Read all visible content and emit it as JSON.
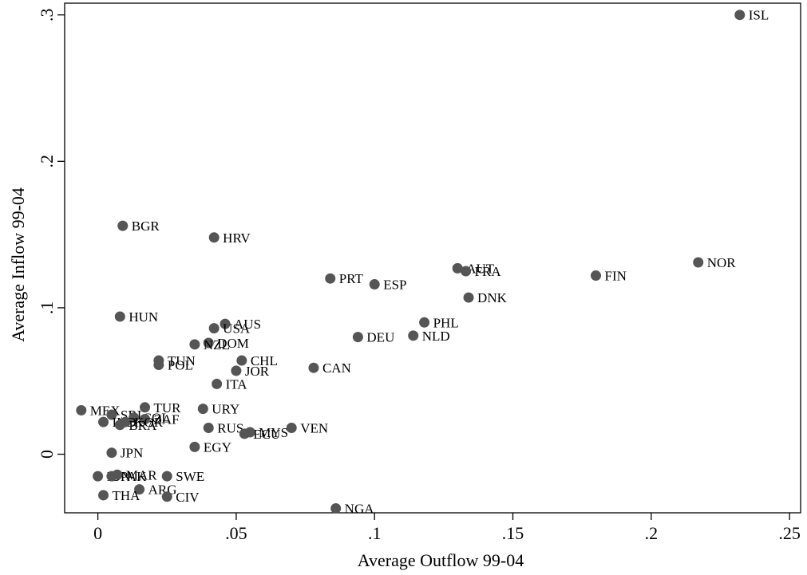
{
  "chart_data": {
    "type": "scatter",
    "xlabel": "Average Outflow 99-04",
    "ylabel": "Average Inflow 99-04",
    "xlim": [
      -0.012,
      0.254
    ],
    "ylim": [
      -0.04,
      0.308
    ],
    "xticks": [
      {
        "value": 0,
        "label": "0"
      },
      {
        "value": 0.05,
        "label": ".05"
      },
      {
        "value": 0.1,
        "label": ".1"
      },
      {
        "value": 0.15,
        "label": ".15"
      },
      {
        "value": 0.2,
        "label": ".2"
      },
      {
        "value": 0.25,
        "label": ".25"
      }
    ],
    "yticks": [
      {
        "value": 0,
        "label": "0"
      },
      {
        "value": 0.1,
        "label": ".1"
      },
      {
        "value": 0.2,
        "label": ".2"
      },
      {
        "value": 0.3,
        "label": ".3"
      }
    ],
    "grid": false,
    "legend": "none",
    "marker_color": "#555555",
    "points": [
      {
        "label": "ISL",
        "x": 0.232,
        "y": 0.3
      },
      {
        "label": "NOR",
        "x": 0.217,
        "y": 0.131
      },
      {
        "label": "FIN",
        "x": 0.18,
        "y": 0.122
      },
      {
        "label": "AUT",
        "x": 0.13,
        "y": 0.127
      },
      {
        "label": "FRA",
        "x": 0.133,
        "y": 0.125
      },
      {
        "label": "DNK",
        "x": 0.134,
        "y": 0.107
      },
      {
        "label": "PRT",
        "x": 0.084,
        "y": 0.12
      },
      {
        "label": "ESP",
        "x": 0.1,
        "y": 0.116
      },
      {
        "label": "PHL",
        "x": 0.118,
        "y": 0.09
      },
      {
        "label": "NLD",
        "x": 0.114,
        "y": 0.081
      },
      {
        "label": "DEU",
        "x": 0.094,
        "y": 0.08
      },
      {
        "label": "CAN",
        "x": 0.078,
        "y": 0.059
      },
      {
        "label": "BGR",
        "x": 0.009,
        "y": 0.156
      },
      {
        "label": "HRV",
        "x": 0.042,
        "y": 0.148
      },
      {
        "label": "HUN",
        "x": 0.008,
        "y": 0.094
      },
      {
        "label": "AUS",
        "x": 0.046,
        "y": 0.089
      },
      {
        "label": "USA",
        "x": 0.042,
        "y": 0.086
      },
      {
        "label": "DOM",
        "x": 0.04,
        "y": 0.076
      },
      {
        "label": "NZL",
        "x": 0.035,
        "y": 0.075
      },
      {
        "label": "CHL",
        "x": 0.052,
        "y": 0.064
      },
      {
        "label": "JOR",
        "x": 0.05,
        "y": 0.057
      },
      {
        "label": "TUN",
        "x": 0.022,
        "y": 0.064
      },
      {
        "label": "POL",
        "x": 0.022,
        "y": 0.061
      },
      {
        "label": "ITA",
        "x": 0.043,
        "y": 0.048
      },
      {
        "label": "MEX",
        "x": -0.006,
        "y": 0.03
      },
      {
        "label": "TUR",
        "x": 0.017,
        "y": 0.032
      },
      {
        "label": "URY",
        "x": 0.038,
        "y": 0.031
      },
      {
        "label": "SRI",
        "x": 0.005,
        "y": 0.027
      },
      {
        "label": "COL",
        "x": 0.013,
        "y": 0.025
      },
      {
        "label": "ZAF",
        "x": 0.017,
        "y": 0.024
      },
      {
        "label": "IND",
        "x": 0.002,
        "y": 0.022
      },
      {
        "label": "KOR",
        "x": 0.01,
        "y": 0.022
      },
      {
        "label": "BRA",
        "x": 0.008,
        "y": 0.02
      },
      {
        "label": "RUS",
        "x": 0.04,
        "y": 0.018
      },
      {
        "label": "VEN",
        "x": 0.07,
        "y": 0.018
      },
      {
        "label": "ECU",
        "x": 0.053,
        "y": 0.014
      },
      {
        "label": "MYS",
        "x": 0.055,
        "y": 0.015
      },
      {
        "label": "EGY",
        "x": 0.035,
        "y": 0.005
      },
      {
        "label": "JPN",
        "x": 0.005,
        "y": 0.001
      },
      {
        "label": "IDN",
        "x": 0.0,
        "y": -0.015
      },
      {
        "label": "PAK",
        "x": 0.005,
        "y": -0.015
      },
      {
        "label": "MAR",
        "x": 0.007,
        "y": -0.014
      },
      {
        "label": "SWE",
        "x": 0.025,
        "y": -0.015
      },
      {
        "label": "ARG",
        "x": 0.015,
        "y": -0.024
      },
      {
        "label": "THA",
        "x": 0.002,
        "y": -0.028
      },
      {
        "label": "CIV",
        "x": 0.025,
        "y": -0.029
      },
      {
        "label": "NGA",
        "x": 0.086,
        "y": -0.037
      }
    ]
  }
}
